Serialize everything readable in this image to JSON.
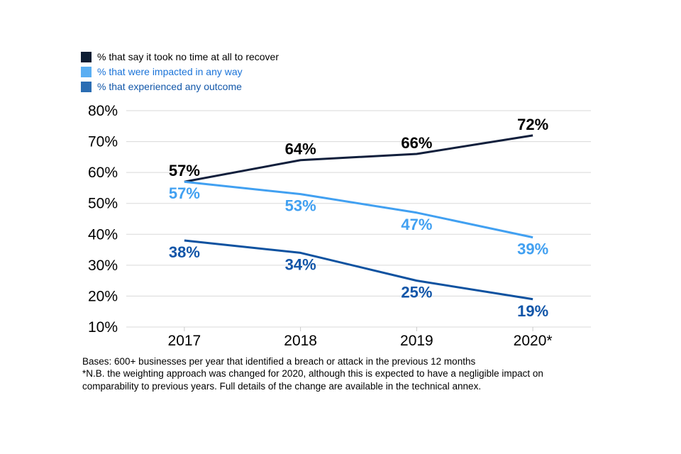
{
  "chart_data": {
    "type": "line",
    "categories": [
      "2017",
      "2018",
      "2019",
      "2020*"
    ],
    "series": [
      {
        "name": "% that say it took no time at all to recover",
        "values": [
          57,
          64,
          66,
          72
        ],
        "line_color": "#111f3c",
        "label_color": "#000000",
        "swatch_color": "#0d1d33",
        "legend_text_color": "#000000",
        "label_position": "above"
      },
      {
        "name": "% that were impacted in any way",
        "values": [
          57,
          53,
          47,
          39
        ],
        "line_color": "#41a0f1",
        "label_color": "#41a0f1",
        "swatch_color": "#5aaef2",
        "legend_text_color": "#1a73d8",
        "label_position": "below"
      },
      {
        "name": "% that experienced any outcome",
        "values": [
          38,
          34,
          25,
          19
        ],
        "line_color": "#0e52a0",
        "label_color": "#1155a8",
        "swatch_color": "#2b6db3",
        "legend_text_color": "#1257a9",
        "label_position": "below"
      }
    ],
    "y_ticks": [
      {
        "value": 10,
        "label": "10%"
      },
      {
        "value": 20,
        "label": "20%"
      },
      {
        "value": 30,
        "label": "30%"
      },
      {
        "value": 40,
        "label": "40%"
      },
      {
        "value": 50,
        "label": "50%"
      },
      {
        "value": 60,
        "label": "60%"
      },
      {
        "value": 70,
        "label": "70%"
      },
      {
        "value": 80,
        "label": "80%"
      }
    ],
    "ylim": [
      10,
      80
    ],
    "grid": "horizontal",
    "grid_color": "#d9d9d9",
    "axis_text_color": "#000000",
    "legend_position": "top-left",
    "data_label_suffix": "%"
  },
  "footer": {
    "lines": [
      "Bases: 600+ businesses per year that identified a breach or attack in the previous 12 months",
      "*N.B. the weighting approach was changed for 2020, although this is expected to have a negligible impact on",
      "comparability to previous years. Full details of the change are available in the technical annex."
    ]
  }
}
